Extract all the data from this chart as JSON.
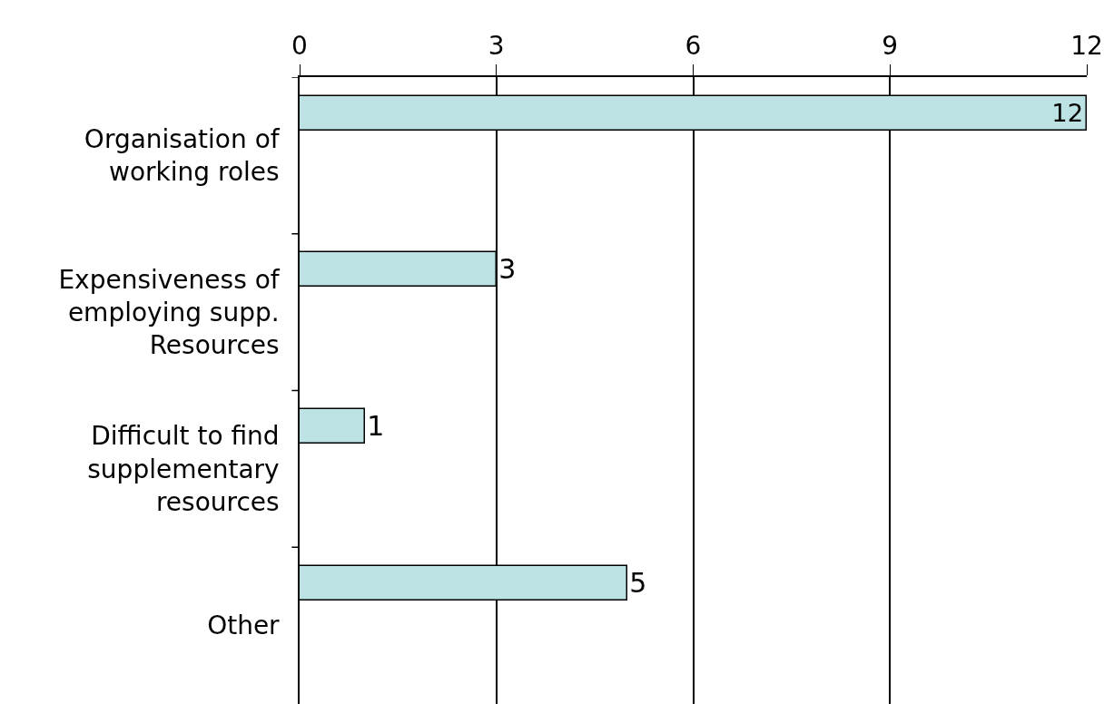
{
  "chart_data": {
    "type": "bar",
    "orientation": "horizontal",
    "categories": [
      "Organisation of working roles",
      "Expensiveness of employing supp. Resources",
      "Difficult to find supplementary resources",
      "Other"
    ],
    "values": [
      12,
      3,
      1,
      5
    ],
    "color": "#bde2e4",
    "xlim": [
      0,
      12
    ],
    "xticks": [
      0,
      3,
      6,
      9,
      12
    ],
    "grid": "x",
    "data_labels": true
  }
}
